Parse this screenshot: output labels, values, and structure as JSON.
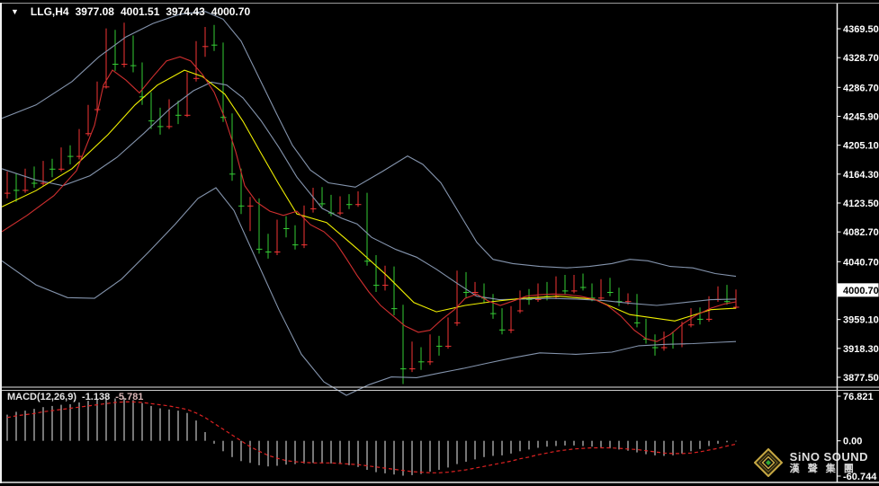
{
  "header": {
    "dropdown_icon": "▼",
    "symbol_period": "LLG,H4",
    "open": "3977.08",
    "high": "4001.51",
    "low": "3974.43",
    "close": "4000.70"
  },
  "price_axis": {
    "ticks": [
      {
        "price": 4369.5,
        "label": "4369.50"
      },
      {
        "price": 4328.7,
        "label": "4328.70"
      },
      {
        "price": 4286.7,
        "label": "4286.70"
      },
      {
        "price": 4245.9,
        "label": "4245.90"
      },
      {
        "price": 4205.1,
        "label": "4205.10"
      },
      {
        "price": 4164.3,
        "label": "4164.30"
      },
      {
        "price": 4123.5,
        "label": "4123.50"
      },
      {
        "price": 4082.7,
        "label": "4082.70"
      },
      {
        "price": 4040.7,
        "label": "4040.70"
      },
      {
        "price": 3959.1,
        "label": "3959.10"
      },
      {
        "price": 3918.3,
        "label": "3918.30"
      },
      {
        "price": 3877.5,
        "label": "3877.50"
      }
    ],
    "current": {
      "price": 4000.7,
      "label": "4000.70"
    }
  },
  "macd_pane": {
    "label": "MACD(12,26,9)",
    "macd_value": "-1.138",
    "signal_value": "-5.781",
    "axis": [
      {
        "value": 76.821,
        "label": "76.821"
      },
      {
        "value": 0,
        "label": "0.00"
      },
      {
        "value": -60.744,
        "label": "-60.744"
      }
    ]
  },
  "watermark": {
    "brand": "SiNO SOUND",
    "brand_cn": "漢 聲 集 團"
  },
  "chart_data": {
    "type": "candlestick",
    "symbol": "LLG",
    "timeframe": "H4",
    "title": "LLG,H4 3977.08 4001.51 3974.43 4000.70",
    "last_quote": {
      "open": 3977.08,
      "high": 4001.51,
      "low": 3974.43,
      "close": 4000.7
    },
    "price_axis_range": [
      3877.5,
      4369.5
    ],
    "macd_axis_range": [
      -60.744,
      76.821
    ],
    "grid": false,
    "colors": {
      "up": "#f23535",
      "down": "#35cc35",
      "band": "#8494ad",
      "ma_slow": "#f0f000",
      "ma_fast": "#d02f2f",
      "hist": "#c4c4c4",
      "signal": "#dd2222",
      "axis_text": "#ffffff",
      "tag_bg": "#ffffff",
      "tag_text": "#000000"
    },
    "candles": [
      [
        4138,
        4168,
        4130,
        4160
      ],
      [
        4160,
        4165,
        4125,
        4142
      ],
      [
        4142,
        4172,
        4138,
        4168
      ],
      [
        4168,
        4175,
        4145,
        4152
      ],
      [
        4152,
        4183,
        4148,
        4178
      ],
      [
        4178,
        4186,
        4160,
        4172
      ],
      [
        4172,
        4202,
        4168,
        4198
      ],
      [
        4198,
        4205,
        4178,
        4190
      ],
      [
        4190,
        4228,
        4185,
        4222
      ],
      [
        4222,
        4262,
        4218,
        4256
      ],
      [
        4256,
        4295,
        4250,
        4288
      ],
      [
        4288,
        4370,
        4285,
        4362
      ],
      [
        4362,
        4368,
        4310,
        4320
      ],
      [
        4320,
        4378,
        4315,
        4355
      ],
      [
        4355,
        4360,
        4308,
        4318
      ],
      [
        4318,
        4322,
        4262,
        4274
      ],
      [
        4274,
        4280,
        4228,
        4240
      ],
      [
        4240,
        4258,
        4220,
        4232
      ],
      [
        4232,
        4270,
        4228,
        4262
      ],
      [
        4262,
        4268,
        4235,
        4248
      ],
      [
        4248,
        4308,
        4245,
        4300
      ],
      [
        4300,
        4352,
        4295,
        4345
      ],
      [
        4345,
        4372,
        4330,
        4352
      ],
      [
        4352,
        4375,
        4338,
        4347
      ],
      [
        4347,
        4350,
        4238,
        4245
      ],
      [
        4245,
        4250,
        4155,
        4165
      ],
      [
        4165,
        4172,
        4108,
        4120
      ],
      [
        4120,
        4132,
        4084,
        4127
      ],
      [
        4127,
        4130,
        4052,
        4059
      ],
      [
        4059,
        4080,
        4045,
        4055
      ],
      [
        4055,
        4100,
        4050,
        4097
      ],
      [
        4097,
        4105,
        4075,
        4088
      ],
      [
        4088,
        4092,
        4058,
        4065
      ],
      [
        4065,
        4120,
        4060,
        4116
      ],
      [
        4116,
        4145,
        4110,
        4141
      ],
      [
        4141,
        4146,
        4118,
        4123
      ],
      [
        4123,
        4135,
        4105,
        4110
      ],
      [
        4110,
        4133,
        4106,
        4130
      ],
      [
        4130,
        4136,
        4115,
        4122
      ],
      [
        4122,
        4140,
        4118,
        4135
      ],
      [
        4135,
        4138,
        4035,
        4042
      ],
      [
        4042,
        4050,
        3998,
        4008
      ],
      [
        4008,
        4035,
        4000,
        4030
      ],
      [
        4030,
        4034,
        3965,
        3975
      ],
      [
        3975,
        3980,
        3868,
        3890
      ],
      [
        3890,
        3928,
        3885,
        3915
      ],
      [
        3915,
        3920,
        3888,
        3900
      ],
      [
        3900,
        3938,
        3895,
        3930
      ],
      [
        3930,
        3936,
        3908,
        3922
      ],
      [
        3922,
        3962,
        3918,
        3955
      ],
      [
        3955,
        4028,
        3950,
        4023
      ],
      [
        4023,
        4026,
        3990,
        3998
      ],
      [
        3998,
        4012,
        3992,
        4006
      ],
      [
        4006,
        4010,
        3982,
        3990
      ],
      [
        3990,
        3995,
        3960,
        3968
      ],
      [
        3968,
        3975,
        3938,
        3945
      ],
      [
        3945,
        3978,
        3940,
        3972
      ],
      [
        3972,
        4000,
        3968,
        3995
      ],
      [
        3995,
        4002,
        3980,
        3988
      ],
      [
        3988,
        4010,
        3984,
        4006
      ],
      [
        4006,
        4012,
        3986,
        3992
      ],
      [
        3992,
        4020,
        3988,
        4016
      ],
      [
        4016,
        4022,
        3995,
        4000
      ],
      [
        4000,
        4022,
        3996,
        4018
      ],
      [
        4018,
        4024,
        4000,
        4005
      ],
      [
        4005,
        4010,
        3985,
        3990
      ],
      [
        3990,
        4016,
        3986,
        4012
      ],
      [
        4012,
        4018,
        3992,
        3998
      ],
      [
        3998,
        4004,
        3978,
        3985
      ],
      [
        3985,
        3996,
        3980,
        3992
      ],
      [
        3992,
        3995,
        3948,
        3955
      ],
      [
        3955,
        3960,
        3925,
        3932
      ],
      [
        3932,
        3938,
        3908,
        3920
      ],
      [
        3920,
        3942,
        3915,
        3938
      ],
      [
        3938,
        3942,
        3918,
        3925
      ],
      [
        3925,
        3956,
        3920,
        3952
      ],
      [
        3952,
        3975,
        3948,
        3970
      ],
      [
        3970,
        3976,
        3952,
        3960
      ],
      [
        3960,
        3992,
        3956,
        3988
      ],
      [
        3988,
        4006,
        3984,
        4002
      ],
      [
        4002,
        4008,
        3980,
        3985
      ],
      [
        3977.08,
        4001.51,
        3974.43,
        4000.7
      ]
    ],
    "bollinger_upper": [
      [
        2,
        4243
      ],
      [
        40,
        4262
      ],
      [
        80,
        4295
      ],
      [
        110,
        4330
      ],
      [
        140,
        4358
      ],
      [
        170,
        4377
      ],
      [
        200,
        4390
      ],
      [
        228,
        4394
      ],
      [
        248,
        4383
      ],
      [
        268,
        4352
      ],
      [
        288,
        4300
      ],
      [
        308,
        4248
      ],
      [
        325,
        4205
      ],
      [
        345,
        4170
      ],
      [
        365,
        4152
      ],
      [
        395,
        4146
      ],
      [
        425,
        4168
      ],
      [
        453,
        4190
      ],
      [
        470,
        4178
      ],
      [
        490,
        4152
      ],
      [
        510,
        4110
      ],
      [
        530,
        4068
      ],
      [
        548,
        4044
      ],
      [
        570,
        4038
      ],
      [
        600,
        4034
      ],
      [
        630,
        4032
      ],
      [
        655,
        4034
      ],
      [
        680,
        4038
      ],
      [
        700,
        4044
      ],
      [
        720,
        4042
      ],
      [
        745,
        4034
      ],
      [
        770,
        4032
      ],
      [
        795,
        4024
      ],
      [
        818,
        4020
      ]
    ],
    "bollinger_middle": [
      [
        2,
        4172
      ],
      [
        40,
        4156
      ],
      [
        70,
        4148
      ],
      [
        100,
        4162
      ],
      [
        130,
        4188
      ],
      [
        160,
        4222
      ],
      [
        190,
        4258
      ],
      [
        215,
        4282
      ],
      [
        235,
        4294
      ],
      [
        252,
        4290
      ],
      [
        270,
        4272
      ],
      [
        290,
        4240
      ],
      [
        310,
        4202
      ],
      [
        330,
        4160
      ],
      [
        358,
        4116
      ],
      [
        380,
        4102
      ],
      [
        397,
        4094
      ],
      [
        413,
        4075
      ],
      [
        440,
        4058
      ],
      [
        463,
        4047
      ],
      [
        485,
        4030
      ],
      [
        507,
        4011
      ],
      [
        530,
        3992
      ],
      [
        555,
        3987
      ],
      [
        580,
        3988
      ],
      [
        610,
        3989
      ],
      [
        640,
        3988
      ],
      [
        670,
        3986
      ],
      [
        700,
        3982
      ],
      [
        730,
        3979
      ],
      [
        760,
        3983
      ],
      [
        790,
        3987
      ],
      [
        818,
        3988
      ]
    ],
    "bollinger_lower": [
      [
        2,
        4042
      ],
      [
        40,
        4008
      ],
      [
        75,
        3990
      ],
      [
        105,
        3989
      ],
      [
        135,
        4016
      ],
      [
        165,
        4054
      ],
      [
        195,
        4094
      ],
      [
        220,
        4130
      ],
      [
        240,
        4145
      ],
      [
        260,
        4113
      ],
      [
        285,
        4043
      ],
      [
        310,
        3973
      ],
      [
        335,
        3910
      ],
      [
        360,
        3871
      ],
      [
        385,
        3852
      ],
      [
        410,
        3867
      ],
      [
        435,
        3878
      ],
      [
        463,
        3877
      ],
      [
        490,
        3884
      ],
      [
        515,
        3890
      ],
      [
        540,
        3897
      ],
      [
        570,
        3905
      ],
      [
        600,
        3912
      ],
      [
        640,
        3910
      ],
      [
        680,
        3913
      ],
      [
        710,
        3922
      ],
      [
        740,
        3924
      ],
      [
        770,
        3925
      ],
      [
        800,
        3927
      ],
      [
        818,
        3928
      ]
    ],
    "ma_slow_yellow": [
      [
        2,
        4118
      ],
      [
        40,
        4141
      ],
      [
        80,
        4172
      ],
      [
        120,
        4220
      ],
      [
        150,
        4262
      ],
      [
        175,
        4290
      ],
      [
        205,
        4311
      ],
      [
        225,
        4302
      ],
      [
        250,
        4277
      ],
      [
        270,
        4239
      ],
      [
        290,
        4194
      ],
      [
        310,
        4150
      ],
      [
        330,
        4108
      ],
      [
        363,
        4096
      ],
      [
        397,
        4059
      ],
      [
        430,
        4021
      ],
      [
        460,
        3983
      ],
      [
        485,
        3970
      ],
      [
        517,
        3979
      ],
      [
        545,
        3984
      ],
      [
        580,
        3989
      ],
      [
        620,
        3992
      ],
      [
        660,
        3988
      ],
      [
        700,
        3966
      ],
      [
        750,
        3957
      ],
      [
        790,
        3973
      ],
      [
        818,
        3975
      ]
    ],
    "ma_fast_red": [
      [
        2,
        4083
      ],
      [
        30,
        4106
      ],
      [
        60,
        4134
      ],
      [
        85,
        4169
      ],
      [
        105,
        4233
      ],
      [
        115,
        4290
      ],
      [
        125,
        4311
      ],
      [
        140,
        4297
      ],
      [
        155,
        4279
      ],
      [
        170,
        4302
      ],
      [
        185,
        4324
      ],
      [
        200,
        4330
      ],
      [
        212,
        4324
      ],
      [
        225,
        4305
      ],
      [
        238,
        4280
      ],
      [
        250,
        4243
      ],
      [
        262,
        4196
      ],
      [
        272,
        4148
      ],
      [
        285,
        4125
      ],
      [
        300,
        4112
      ],
      [
        315,
        4106
      ],
      [
        330,
        4112
      ],
      [
        345,
        4093
      ],
      [
        360,
        4083
      ],
      [
        373,
        4068
      ],
      [
        385,
        4045
      ],
      [
        397,
        4021
      ],
      [
        410,
        3998
      ],
      [
        423,
        3979
      ],
      [
        437,
        3964
      ],
      [
        450,
        3950
      ],
      [
        465,
        3941
      ],
      [
        478,
        3944
      ],
      [
        492,
        3960
      ],
      [
        505,
        3973
      ],
      [
        517,
        3989
      ],
      [
        530,
        3995
      ],
      [
        543,
        3985
      ],
      [
        556,
        3979
      ],
      [
        570,
        3985
      ],
      [
        585,
        3992
      ],
      [
        600,
        3994
      ],
      [
        615,
        3995
      ],
      [
        630,
        3994
      ],
      [
        645,
        3992
      ],
      [
        660,
        3988
      ],
      [
        675,
        3979
      ],
      [
        690,
        3964
      ],
      [
        705,
        3944
      ],
      [
        718,
        3932
      ],
      [
        730,
        3928
      ],
      [
        745,
        3938
      ],
      [
        760,
        3954
      ],
      [
        775,
        3966
      ],
      [
        790,
        3975
      ],
      [
        805,
        3981
      ],
      [
        818,
        3984
      ]
    ],
    "macd_histogram": [
      45,
      50,
      52,
      55,
      58,
      60,
      62,
      63,
      66,
      69,
      71,
      74,
      73,
      74,
      70,
      65,
      60,
      56,
      54,
      52,
      48,
      35,
      15,
      -5,
      -18,
      -28,
      -35,
      -38,
      -42,
      -44,
      -43,
      -41,
      -40,
      -39,
      -38,
      -38,
      -39,
      -40,
      -42,
      -45,
      -50,
      -54,
      -56,
      -58,
      -60,
      -59,
      -57,
      -53,
      -50,
      -46,
      -40,
      -36,
      -32,
      -28,
      -26,
      -25,
      -22,
      -18,
      -15,
      -12,
      -10,
      -9,
      -8,
      -8,
      -9,
      -10,
      -11,
      -13,
      -15,
      -17,
      -20,
      -23,
      -25,
      -26,
      -25,
      -22,
      -18,
      -14,
      -9,
      -5,
      -2.5,
      -1.138
    ],
    "macd_signal": [
      40,
      43,
      45,
      47,
      50,
      52,
      54,
      56,
      58,
      60,
      62,
      64,
      66,
      67,
      67,
      66,
      64,
      62,
      60,
      57,
      54,
      48,
      40,
      30,
      20,
      10,
      0,
      -10,
      -18,
      -25,
      -30,
      -34,
      -36,
      -37,
      -38,
      -38,
      -38,
      -39,
      -40,
      -41,
      -43,
      -45,
      -47,
      -49,
      -51,
      -53,
      -54,
      -55,
      -55,
      -54,
      -52,
      -50,
      -47,
      -44,
      -41,
      -38,
      -35,
      -31,
      -28,
      -24,
      -21,
      -18,
      -16,
      -14,
      -13,
      -12,
      -12,
      -12,
      -13,
      -14,
      -15,
      -17,
      -19,
      -21,
      -22,
      -22,
      -21,
      -19,
      -16,
      -13,
      -9,
      -5.781
    ]
  }
}
